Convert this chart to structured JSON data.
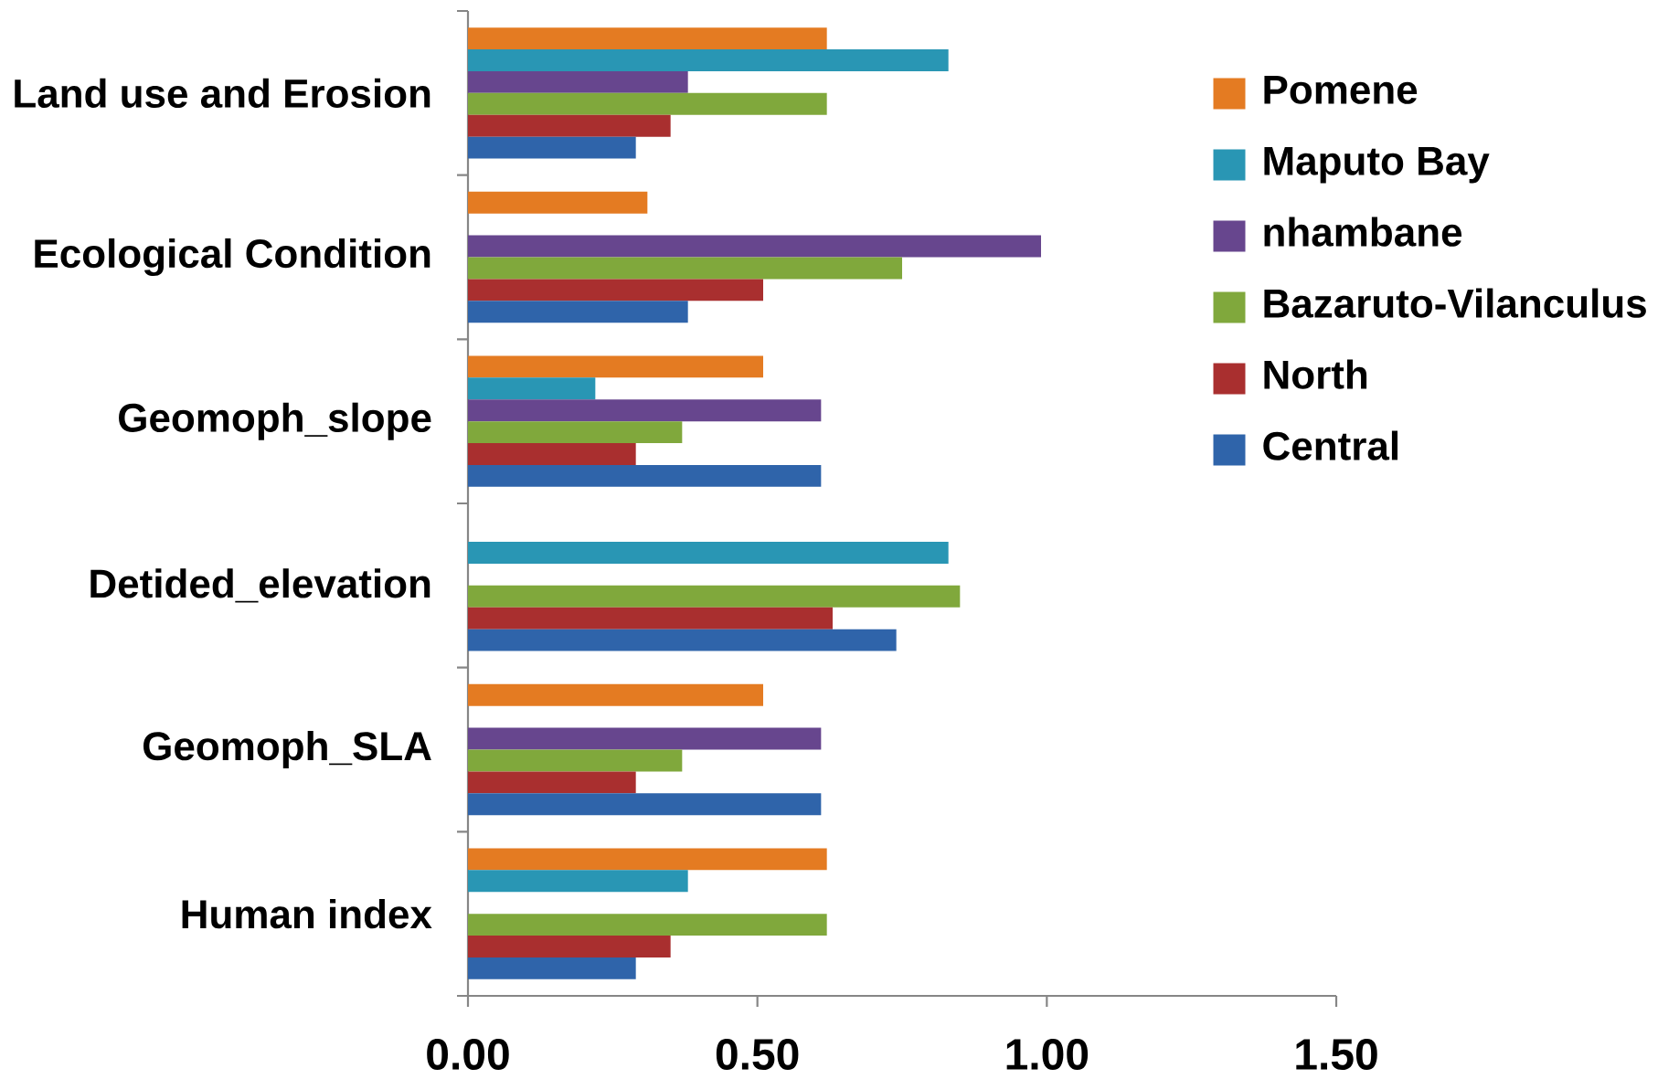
{
  "chart_data": {
    "type": "bar",
    "orientation": "horizontal",
    "categories": [
      "Land use and Erosion",
      "Ecological Condition",
      "Geomoph_slope",
      "Detided_elevation",
      "Geomoph_SLA",
      "Human index"
    ],
    "series": [
      {
        "name": "Pomene",
        "color": "#e47b22",
        "values": [
          0.62,
          0.31,
          0.51,
          null,
          0.51,
          0.62
        ]
      },
      {
        "name": "Maputo Bay",
        "color": "#2996b4",
        "values": [
          0.83,
          null,
          0.22,
          0.83,
          null,
          0.38
        ]
      },
      {
        "name": "nhambane",
        "color": "#67468e",
        "values": [
          0.38,
          0.99,
          0.61,
          null,
          0.61,
          null
        ]
      },
      {
        "name": "Bazaruto-Vilanculus",
        "color": "#80a83c",
        "values": [
          0.62,
          0.75,
          0.37,
          0.85,
          0.37,
          0.62
        ]
      },
      {
        "name": "North",
        "color": "#a92f2f",
        "values": [
          0.35,
          0.51,
          0.29,
          0.63,
          0.29,
          0.35
        ]
      },
      {
        "name": "Central",
        "color": "#2f64aa",
        "values": [
          0.29,
          0.38,
          0.61,
          0.74,
          0.61,
          0.29
        ]
      }
    ],
    "xlim": [
      0,
      1.5
    ],
    "xticks": [
      {
        "value": 0,
        "label": "0.00"
      },
      {
        "value": 0.5,
        "label": "0.50"
      },
      {
        "value": 1,
        "label": "1.00"
      },
      {
        "value": 1.5,
        "label": "1.50"
      }
    ],
    "legend": "top right"
  }
}
